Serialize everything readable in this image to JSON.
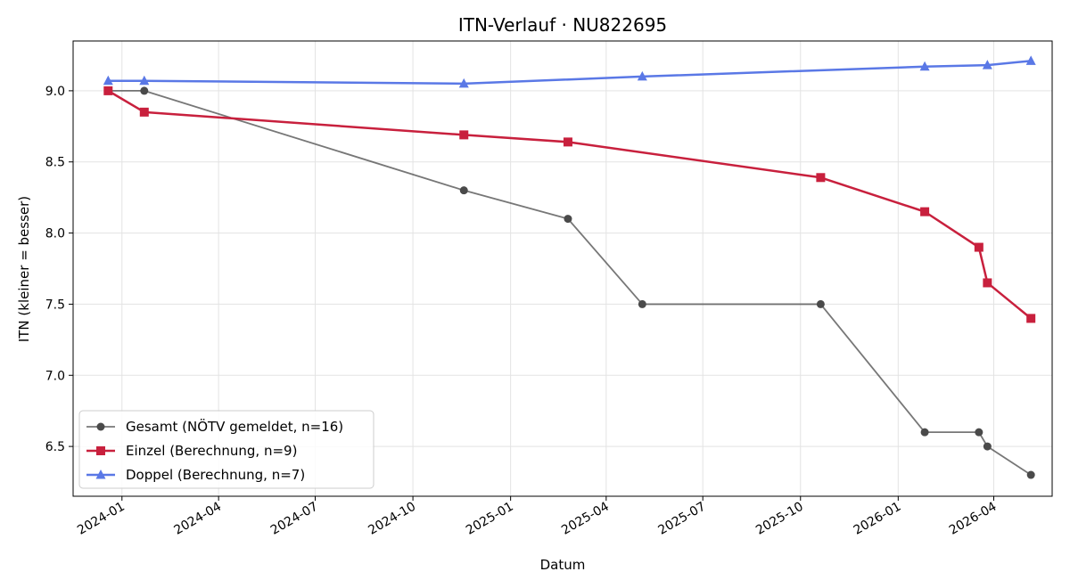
{
  "chart_data": {
    "type": "line",
    "title": "ITN-Verlauf · NU822695",
    "xlabel": "Datum",
    "ylabel": "ITN  (kleiner = besser)",
    "x_type": "date",
    "xlim": [
      "2023-11-16",
      "2026-05-26"
    ],
    "ylim": [
      6.15,
      9.35
    ],
    "yticks": [
      6.5,
      7.0,
      7.5,
      8.0,
      8.5,
      9.0
    ],
    "yticks_labels": [
      "6.5",
      "7.0",
      "7.5",
      "8.0",
      "8.5",
      "9.0"
    ],
    "xticks": [
      "2024-01-01",
      "2024-04-01",
      "2024-07-01",
      "2024-10-01",
      "2025-01-01",
      "2025-04-01",
      "2025-07-01",
      "2025-10-01",
      "2026-01-01",
      "2026-04-01"
    ],
    "xticks_labels": [
      "2024-01",
      "2024-04",
      "2024-07",
      "2024-10",
      "2025-01",
      "2025-04",
      "2025-07",
      "2025-10",
      "2026-01",
      "2026-04"
    ],
    "grid": true,
    "legend_position": "lower-left",
    "series": [
      {
        "name": "Gesamt (NÖTV gemeldet, n=16)",
        "color": "#4a4a4a",
        "marker": "circle",
        "x": [
          "2023-12-19",
          "2024-01-22",
          "2024-11-18",
          "2025-02-24",
          "2025-05-05",
          "2025-10-20",
          "2026-01-26",
          "2026-03-18",
          "2026-03-26",
          "2026-05-06"
        ],
        "y": [
          9.0,
          9.0,
          8.3,
          8.1,
          7.5,
          7.5,
          6.6,
          6.6,
          6.5,
          6.3
        ]
      },
      {
        "name": "Einzel (Berechnung, n=9)",
        "color": "#c8203d",
        "marker": "square",
        "x": [
          "2023-12-19",
          "2024-01-22",
          "2024-11-18",
          "2025-02-24",
          "2025-10-20",
          "2026-01-26",
          "2026-03-18",
          "2026-03-26",
          "2026-05-06"
        ],
        "y": [
          9.0,
          8.85,
          8.69,
          8.64,
          8.39,
          8.15,
          7.9,
          7.65,
          7.4
        ]
      },
      {
        "name": "Doppel (Berechnung, n=7)",
        "color": "#5a78e6",
        "marker": "triangle",
        "x": [
          "2023-12-19",
          "2024-01-22",
          "2024-11-18",
          "2025-05-05",
          "2026-01-26",
          "2026-03-26",
          "2026-05-06"
        ],
        "y": [
          9.07,
          9.07,
          9.05,
          9.1,
          9.17,
          9.18,
          9.21
        ]
      }
    ]
  }
}
